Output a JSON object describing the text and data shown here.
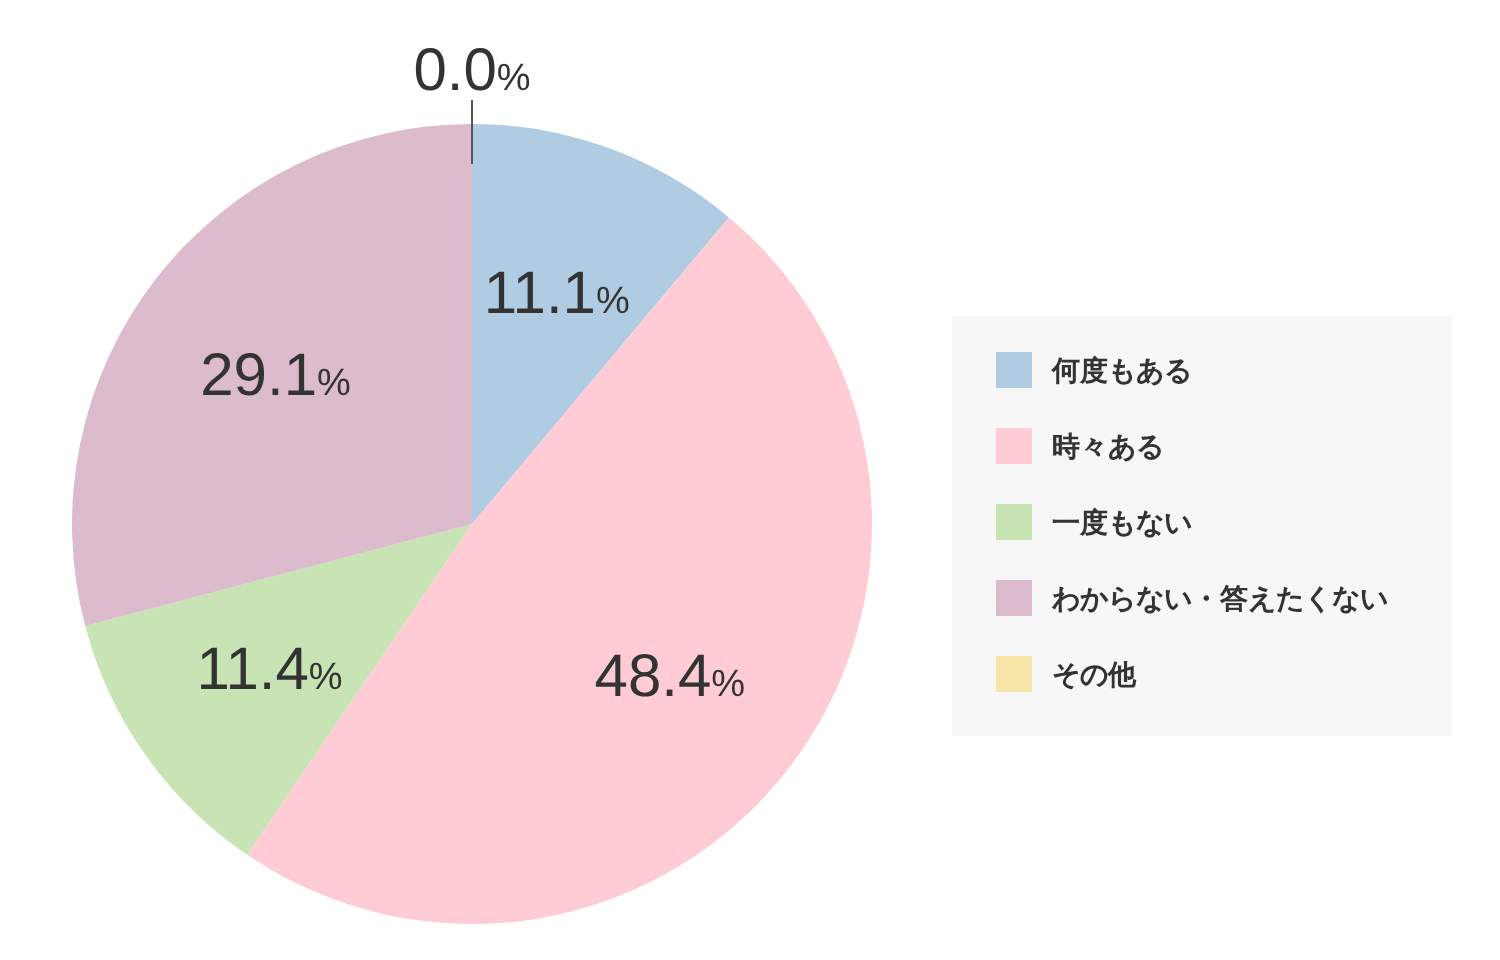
{
  "chart_data": {
    "type": "pie",
    "categories": [
      "何度もある",
      "時々ある",
      "一度もない",
      "わからない・答えたくない",
      "その他"
    ],
    "values": [
      11.1,
      48.4,
      11.4,
      29.1,
      0.0
    ],
    "colors": [
      "#b0cce3",
      "#ffccd5",
      "#c8e3b4",
      "#dcbccc",
      "#f5e6a8"
    ],
    "value_labels": [
      "11.1%",
      "48.4%",
      "11.4%",
      "29.1%",
      "0.0%"
    ],
    "legend": "right"
  }
}
